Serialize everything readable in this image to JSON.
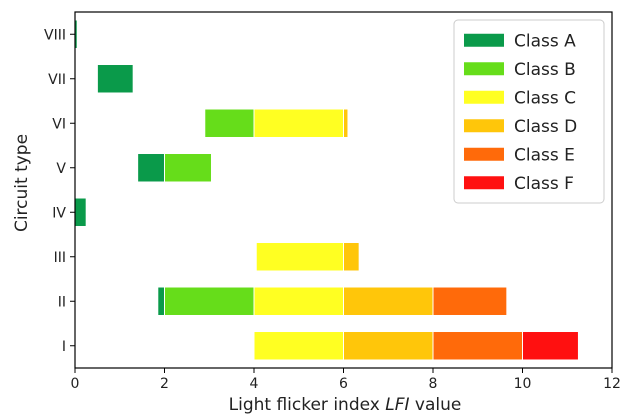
{
  "chart_data": {
    "type": "bar",
    "orientation": "horizontal",
    "stacked": true,
    "xlabel_main": "Light flicker index ",
    "xlabel_italic": "LFI",
    "xlabel_end": " value",
    "ylabel": "Circuit type",
    "xlim": [
      0,
      12
    ],
    "xticks": [
      0,
      2,
      4,
      6,
      8,
      10,
      12
    ],
    "categories": [
      "I",
      "II",
      "III",
      "IV",
      "V",
      "VI",
      "VII",
      "VIII"
    ],
    "legend_position": "top-right",
    "grid": false,
    "classes": [
      {
        "name": "Class A",
        "color": "#0a9a4a"
      },
      {
        "name": "Class B",
        "color": "#66dd1a"
      },
      {
        "name": "Class C",
        "color": "#ffff22"
      },
      {
        "name": "Class D",
        "color": "#ffc60a"
      },
      {
        "name": "Class E",
        "color": "#ff6a0a"
      },
      {
        "name": "Class F",
        "color": "#ff1010"
      }
    ],
    "segments": [
      {
        "category": "I",
        "class": "Class C",
        "start": 4.0,
        "end": 6.0
      },
      {
        "category": "I",
        "class": "Class D",
        "start": 6.0,
        "end": 8.0
      },
      {
        "category": "I",
        "class": "Class E",
        "start": 8.0,
        "end": 10.0
      },
      {
        "category": "I",
        "class": "Class F",
        "start": 10.0,
        "end": 11.25
      },
      {
        "category": "II",
        "class": "Class A",
        "start": 1.85,
        "end": 2.0
      },
      {
        "category": "II",
        "class": "Class B",
        "start": 2.0,
        "end": 4.0
      },
      {
        "category": "II",
        "class": "Class C",
        "start": 4.0,
        "end": 6.0
      },
      {
        "category": "II",
        "class": "Class D",
        "start": 6.0,
        "end": 8.0
      },
      {
        "category": "II",
        "class": "Class E",
        "start": 8.0,
        "end": 9.65
      },
      {
        "category": "III",
        "class": "Class C",
        "start": 4.05,
        "end": 6.0
      },
      {
        "category": "III",
        "class": "Class D",
        "start": 6.0,
        "end": 6.35
      },
      {
        "category": "IV",
        "class": "Class A",
        "start": 0.0,
        "end": 0.25
      },
      {
        "category": "V",
        "class": "Class A",
        "start": 1.4,
        "end": 2.0
      },
      {
        "category": "V",
        "class": "Class B",
        "start": 2.0,
        "end": 3.05
      },
      {
        "category": "VI",
        "class": "Class B",
        "start": 2.9,
        "end": 4.0
      },
      {
        "category": "VI",
        "class": "Class C",
        "start": 4.0,
        "end": 6.0
      },
      {
        "category": "VI",
        "class": "Class D",
        "start": 6.0,
        "end": 6.1
      },
      {
        "category": "VII",
        "class": "Class A",
        "start": 0.5,
        "end": 1.3
      },
      {
        "category": "VIII",
        "class": "Class A",
        "start": 0.0,
        "end": 0.05
      }
    ]
  }
}
